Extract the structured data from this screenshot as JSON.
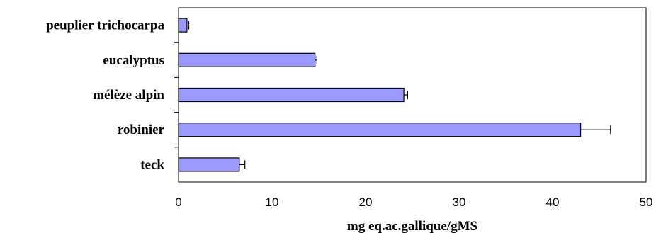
{
  "chart_data": {
    "type": "bar",
    "orientation": "horizontal",
    "categories": [
      "peuplier trichocarpa",
      "eucalyptus",
      "mélèze alpin",
      "robinier",
      "teck"
    ],
    "values": [
      0.9,
      14.6,
      24.1,
      43.0,
      6.5
    ],
    "errors": [
      0.2,
      0.2,
      0.4,
      3.2,
      0.6
    ],
    "xlabel": "mg eq.ac.gallique/gMS",
    "ylabel": "",
    "xlim": [
      0,
      50
    ],
    "xticks": [
      "0",
      "10",
      "20",
      "30",
      "40",
      "50"
    ],
    "grid": false,
    "bar_color": "#9999ff",
    "bar_edge_color": "#000000"
  }
}
